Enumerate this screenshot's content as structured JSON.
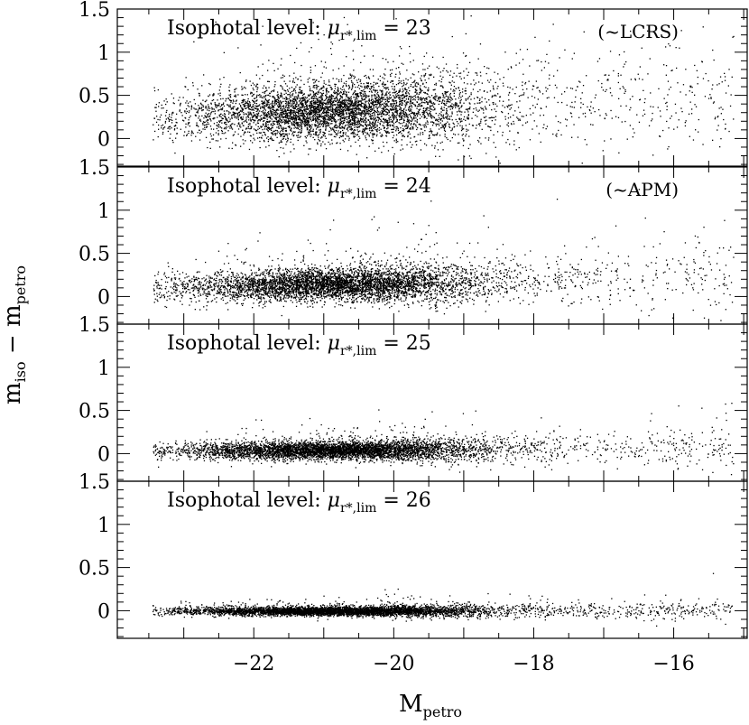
{
  "chart_data": {
    "type": "scatter",
    "xlabel": "M",
    "xlabel_sub": "petro",
    "ylabel": "m",
    "ylabel_sub1": "iso",
    "ylabel_mid": " − m",
    "ylabel_sub2": "petro",
    "xlim": [
      -23.95,
      -14.95
    ],
    "ylim": [
      -0.32,
      1.5
    ],
    "x_ticks": [
      -22,
      -20,
      -18,
      -16
    ],
    "x_tick_labels": [
      "−22",
      "−20",
      "−18",
      "−16"
    ],
    "y_ticks": [
      0,
      0.5,
      1,
      1.5
    ],
    "y_tick_labels": [
      "0",
      "0.5",
      "1",
      "1.5"
    ],
    "title_prefix": "Isophotal level: ",
    "title_mu": "μ",
    "title_sub": "r*,lim",
    "title_eq": " = ",
    "panels": [
      {
        "level": "23",
        "note": "(~LCRS)",
        "median_offset": 0.32,
        "scatter": 0.16,
        "sample_points": [
          [
            -22.0,
            0.35
          ],
          [
            -21.0,
            0.3
          ],
          [
            -20.0,
            0.25
          ],
          [
            -19.0,
            0.3
          ],
          [
            -17.0,
            0.5
          ]
        ]
      },
      {
        "level": "24",
        "note": "(~APM)",
        "median_offset": 0.14,
        "scatter": 0.09,
        "sample_points": [
          [
            -22.0,
            0.16
          ],
          [
            -21.0,
            0.12
          ],
          [
            -20.0,
            0.1
          ],
          [
            -19.0,
            0.12
          ],
          [
            -17.0,
            0.25
          ]
        ]
      },
      {
        "level": "25",
        "note": "",
        "median_offset": 0.04,
        "scatter": 0.05,
        "sample_points": [
          [
            -22.0,
            0.06
          ],
          [
            -21.0,
            0.04
          ],
          [
            -20.0,
            0.03
          ],
          [
            -19.0,
            0.04
          ],
          [
            -17.0,
            0.08
          ]
        ]
      },
      {
        "level": "26",
        "note": "",
        "median_offset": 0.0,
        "scatter": 0.025,
        "sample_points": [
          [
            -22.0,
            0.01
          ],
          [
            -21.0,
            0.0
          ],
          [
            -20.0,
            0.0
          ],
          [
            -19.0,
            0.01
          ],
          [
            -17.0,
            0.02
          ]
        ]
      }
    ],
    "grid": false,
    "legend": "none"
  }
}
